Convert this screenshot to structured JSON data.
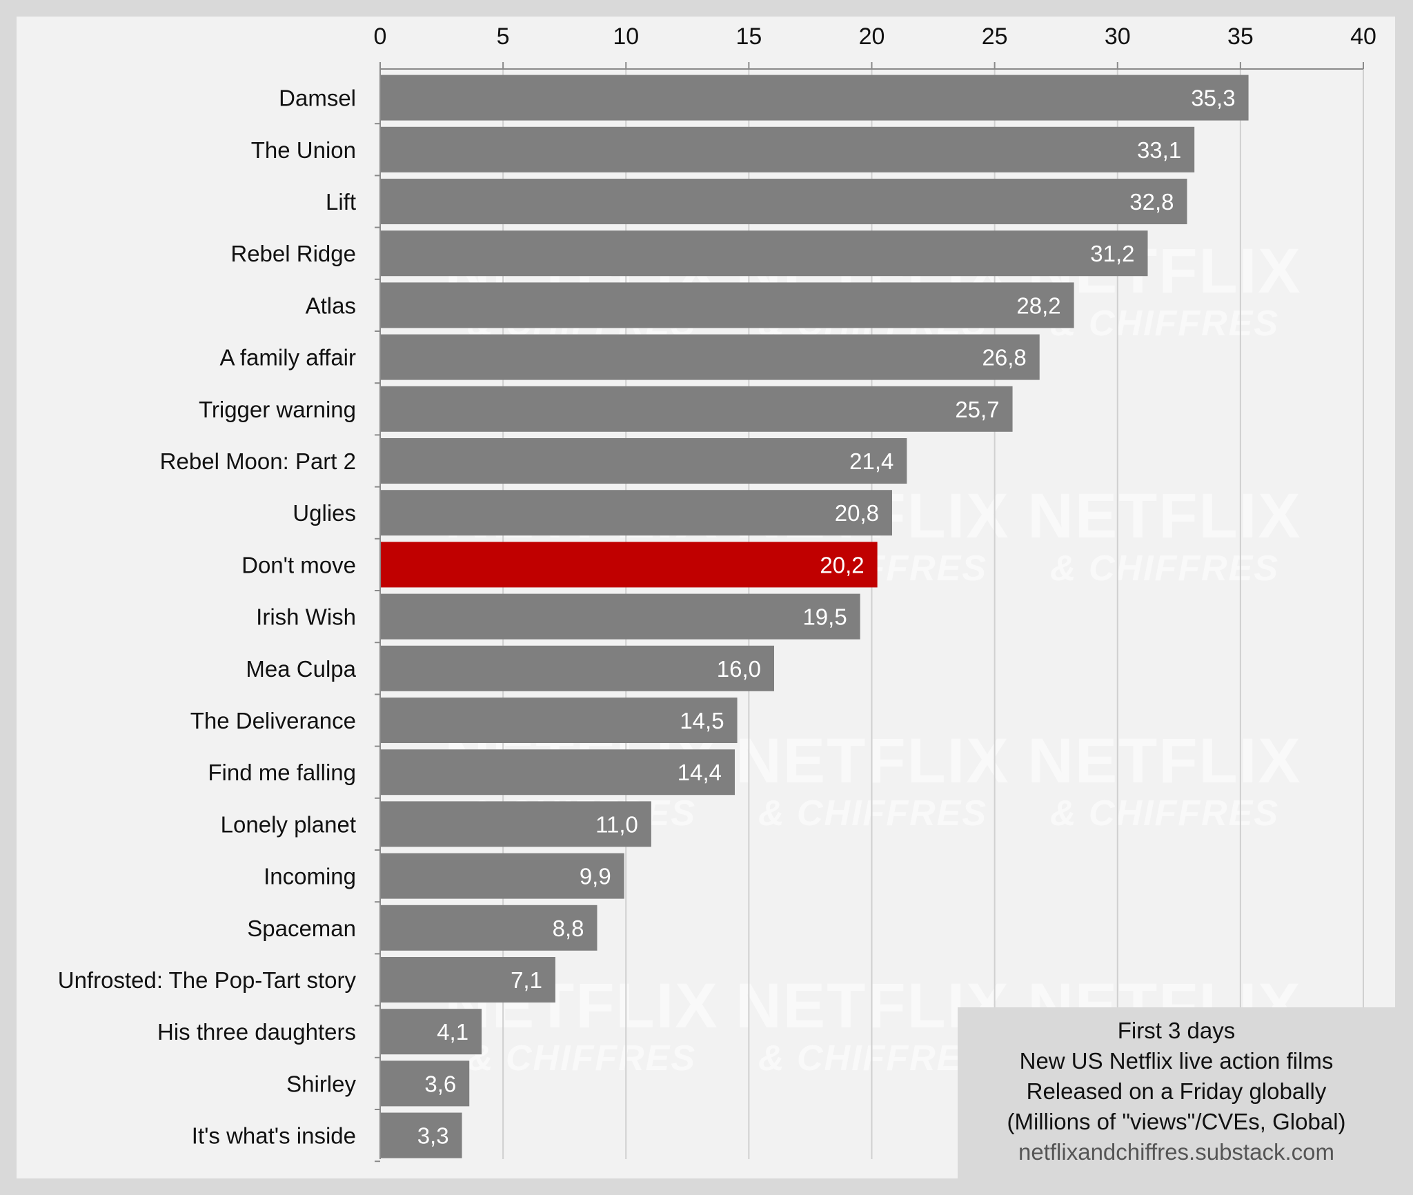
{
  "chart_data": {
    "type": "bar",
    "orientation": "horizontal",
    "categories": [
      "Damsel",
      "The Union",
      "Lift",
      "Rebel Ridge",
      "Atlas",
      "A family affair",
      "Trigger warning",
      "Rebel Moon: Part 2",
      "Uglies",
      "Don't move",
      "Irish Wish",
      "Mea Culpa",
      "The Deliverance",
      "Find me falling",
      "Lonely planet",
      "Incoming",
      "Spaceman",
      "Unfrosted: The Pop-Tart story",
      "His three daughters",
      "Shirley",
      "It's what's inside"
    ],
    "values": [
      35.3,
      33.1,
      32.8,
      31.2,
      28.2,
      26.8,
      25.7,
      21.4,
      20.8,
      20.2,
      19.5,
      16.0,
      14.5,
      14.4,
      11.0,
      9.9,
      8.8,
      7.1,
      4.1,
      3.6,
      3.3
    ],
    "value_labels": [
      "35,3",
      "33,1",
      "32,8",
      "31,2",
      "28,2",
      "26,8",
      "25,7",
      "21,4",
      "20,8",
      "20,2",
      "19,5",
      "16,0",
      "14,5",
      "14,4",
      "11,0",
      "9,9",
      "8,8",
      "7,1",
      "4,1",
      "3,6",
      "3,3"
    ],
    "highlight_category": "Don't move",
    "xlim": [
      0,
      40
    ],
    "xticks": [
      0,
      5,
      10,
      15,
      20,
      25,
      30,
      35,
      40
    ],
    "x_axis_position": "top",
    "grid": true,
    "colors": {
      "bar": "#7f7f7f",
      "highlight": "#c00000",
      "value_text": "#ffffff"
    }
  },
  "info_box": {
    "lines": [
      "First 3 days",
      "New US Netflix live action films",
      "Released on a Friday globally",
      "(Millions of \"views\"/CVEs, Global)"
    ],
    "source": "netflixandchiffres.substack.com"
  },
  "watermark": {
    "line1": "NETFLIX",
    "line2": "& CHIFFRES"
  }
}
